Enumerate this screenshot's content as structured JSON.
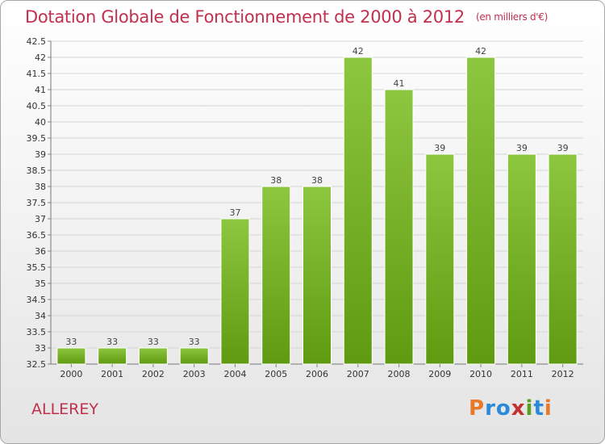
{
  "chart_title": "Dotation Globale de Fonctionnement de 2000 à 2012",
  "chart_subtitle": "(en milliers d'€)",
  "commune": "ALLEREY",
  "logo": {
    "letters": [
      "P",
      "r",
      "o",
      "x",
      "i",
      "t",
      "i"
    ],
    "colors": [
      "#e8782a",
      "#2a8ad8",
      "#2a8ad8",
      "#c33030",
      "#5aa020",
      "#2a8ad8",
      "#e8782a"
    ]
  },
  "chart_data": {
    "type": "bar",
    "title": "Dotation Globale de Fonctionnement de 2000 à 2012",
    "subtitle": "(en milliers d'€)",
    "categories": [
      "2000",
      "2001",
      "2002",
      "2003",
      "2004",
      "2005",
      "2006",
      "2007",
      "2008",
      "2009",
      "2010",
      "2011",
      "2012"
    ],
    "values": [
      33,
      33,
      33,
      33,
      37,
      38,
      38,
      42,
      41,
      39,
      42,
      39,
      39
    ],
    "value_labels": [
      "33",
      "33",
      "33",
      "33",
      "37",
      "38",
      "38",
      "42",
      "41",
      "39",
      "42",
      "39",
      "39"
    ],
    "xlabel": "",
    "ylabel": "",
    "ylim": [
      32.5,
      42.5
    ],
    "yticks": [
      "32.5",
      "33",
      "33.5",
      "34",
      "34.5",
      "35",
      "35.5",
      "36",
      "36.5",
      "37",
      "37.5",
      "38",
      "38.5",
      "39",
      "39.5",
      "40",
      "40.5",
      "41",
      "41.5",
      "42",
      "42.5"
    ],
    "grid": true,
    "bar_color": "#8dc63f",
    "bar_color_dark": "#5f9a10"
  }
}
